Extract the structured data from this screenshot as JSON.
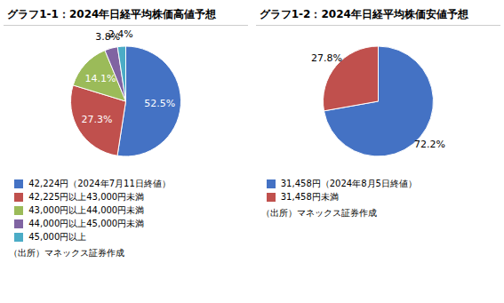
{
  "chart_data": [
    {
      "type": "pie",
      "title": "グラフ1-1：2024年日経平均株価高値予想",
      "categories": [
        "42,224円（2024年7月11日終値）",
        "42,225円以上43,000円未満",
        "43,000円以上44,000円未満",
        "44,000円以上45,000円未満",
        "45,000円以上"
      ],
      "values": [
        52.5,
        27.3,
        14.1,
        3.8,
        2.4
      ],
      "value_labels": [
        "52.5%",
        "27.3%",
        "14.1%",
        "3.8%",
        "2.4%"
      ],
      "colors": [
        "#4472C4",
        "#C0504D",
        "#9BBB59",
        "#8064A2",
        "#4BACC6"
      ],
      "data_labels": true,
      "legend": "bottom",
      "annotations": [
        "（出所）マネックス証券作成"
      ]
    },
    {
      "type": "pie",
      "title": "グラフ1-2：2024年日経平均株価安値予想",
      "categories": [
        "31,458円（2024年8月5日終値）",
        "31,458円未満"
      ],
      "values": [
        72.2,
        27.8
      ],
      "value_labels": [
        "72.2%",
        "27.8%"
      ],
      "colors": [
        "#4472C4",
        "#C0504D"
      ],
      "data_labels": true,
      "legend": "bottom",
      "annotations": [
        "（出所）マネックス証券作成"
      ]
    }
  ]
}
